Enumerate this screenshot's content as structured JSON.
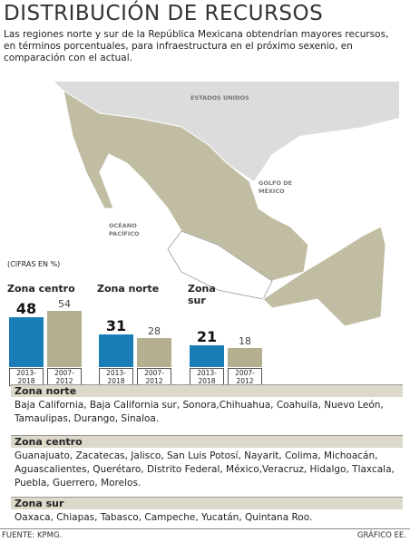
{
  "header": {
    "title": "DISTRIBUCIÓN DE RECURSOS",
    "subtitle": "Las regiones norte y sur de la República Mexicana obtendrían mayores recursos, en términos porcentuales, para infraestructura en el próximo sexenio, en comparación con el actual."
  },
  "map": {
    "labels": [
      "ESTADOS UNIDOS",
      "GOLFO DE MÉXICO",
      "OCÉANO PACÍFICO"
    ]
  },
  "note": "(CIFRAS EN %)",
  "chart_data": [
    {
      "type": "bar",
      "title": "Zona centro",
      "categories": [
        "2013-2018",
        "2007-2012"
      ],
      "values": [
        48,
        54
      ],
      "colors": [
        "#1b7db6",
        "#b4af8e"
      ]
    },
    {
      "type": "bar",
      "title": "Zona norte",
      "categories": [
        "2013-2018",
        "2007-2012"
      ],
      "values": [
        31,
        28
      ],
      "colors": [
        "#1b7db6",
        "#b4af8e"
      ]
    },
    {
      "type": "bar",
      "title": "Zona sur",
      "categories": [
        "2013-2018",
        "2007-2012"
      ],
      "values": [
        21,
        18
      ],
      "colors": [
        "#1b7db6",
        "#b4af8e"
      ]
    }
  ],
  "sections": [
    {
      "title": "Zona norte",
      "text": "Baja California, Baja California sur, Sonora,Chihuahua, Coahuila, Nuevo León, Tamaulipas, Durango, Sinaloa."
    },
    {
      "title": "Zona centro",
      "text": "Guanajuato, Zacatecas, Jalisco, San Luis Potosí, Nayarit, Colima, Michoacán, Aguascalientes, Querétaro, Distrito Federal, México,Veracruz, Hidalgo, Tlaxcala, Puebla, Guerrero, Morelos."
    },
    {
      "title": "Zona sur",
      "text": "Oaxaca, Chiapas, Tabasco, Campeche, Yucatán, Quintana Roo."
    }
  ],
  "footer": {
    "source": "FUENTE: KPMG.",
    "credit": "GRÁFICO EE."
  }
}
